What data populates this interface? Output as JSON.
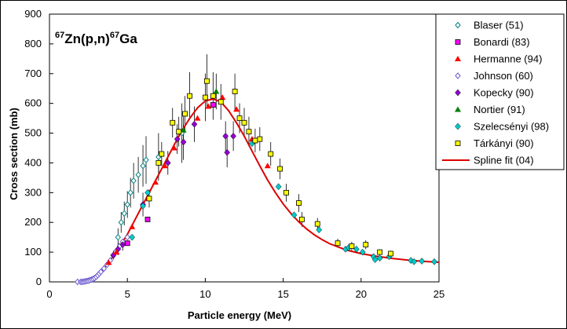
{
  "chart_data": {
    "type": "scatter",
    "title": "",
    "reaction": {
      "mass_a": "67",
      "core_a": "Zn(p,n)",
      "mass_b": "67",
      "core_b": "Ga"
    },
    "xlabel": "Particle energy (MeV)",
    "ylabel": "Cross section (mb)",
    "xlim": [
      0,
      25
    ],
    "ylim": [
      0,
      900
    ],
    "xticks": [
      0,
      5,
      10,
      15,
      20,
      25
    ],
    "yticks": [
      0,
      100,
      200,
      300,
      400,
      500,
      600,
      700,
      800,
      900
    ],
    "grid": false,
    "legend_position": "top-right",
    "series": [
      {
        "name": "Blaser (51)",
        "marker": "diamond-open",
        "color": "#008080",
        "points": [
          {
            "x": 4.4,
            "y": 150,
            "e": 30
          },
          {
            "x": 4.6,
            "y": 200,
            "e": 35
          },
          {
            "x": 4.8,
            "y": 230,
            "e": 40
          },
          {
            "x": 5.0,
            "y": 260,
            "e": 45
          },
          {
            "x": 5.2,
            "y": 300,
            "e": 50
          },
          {
            "x": 5.4,
            "y": 340,
            "e": 60
          },
          {
            "x": 5.7,
            "y": 360,
            "e": 60
          },
          {
            "x": 6.0,
            "y": 390,
            "e": 70
          },
          {
            "x": 6.2,
            "y": 410,
            "e": 80
          },
          {
            "x": 7.0,
            "y": 420,
            "e": 80
          },
          {
            "x": 8.5,
            "y": 500,
            "e": 100
          }
        ]
      },
      {
        "name": "Bonardi (83)",
        "marker": "square",
        "color": "#ff00ff",
        "points": [
          {
            "x": 5.0,
            "y": 130
          },
          {
            "x": 6.3,
            "y": 210
          },
          {
            "x": 10.5,
            "y": 595
          }
        ]
      },
      {
        "name": "Hermanne (94)",
        "marker": "triangle",
        "color": "#ff0000",
        "points": [
          {
            "x": 3.8,
            "y": 65
          },
          {
            "x": 4.3,
            "y": 100
          },
          {
            "x": 5.3,
            "y": 185
          },
          {
            "x": 6.3,
            "y": 280
          },
          {
            "x": 6.8,
            "y": 335
          },
          {
            "x": 7.4,
            "y": 390
          },
          {
            "x": 8.0,
            "y": 450
          },
          {
            "x": 9.5,
            "y": 550
          },
          {
            "x": 10.2,
            "y": 590
          },
          {
            "x": 11.1,
            "y": 620
          },
          {
            "x": 12.0,
            "y": 580
          },
          {
            "x": 13.0,
            "y": 480
          },
          {
            "x": 14.0,
            "y": 390
          }
        ]
      },
      {
        "name": "Johnson (60)",
        "marker": "diamond-open",
        "color": "#6a5acd",
        "points": [
          {
            "x": 1.8,
            "y": 0
          },
          {
            "x": 2.0,
            "y": 0
          },
          {
            "x": 2.1,
            "y": 0
          },
          {
            "x": 2.2,
            "y": 1
          },
          {
            "x": 2.3,
            "y": 2
          },
          {
            "x": 2.4,
            "y": 3
          },
          {
            "x": 2.5,
            "y": 4
          },
          {
            "x": 2.6,
            "y": 6
          },
          {
            "x": 2.7,
            "y": 8
          },
          {
            "x": 2.8,
            "y": 10
          },
          {
            "x": 2.9,
            "y": 13
          },
          {
            "x": 3.0,
            "y": 17
          },
          {
            "x": 3.1,
            "y": 22
          },
          {
            "x": 3.2,
            "y": 28
          },
          {
            "x": 3.3,
            "y": 34
          },
          {
            "x": 3.5,
            "y": 45
          },
          {
            "x": 3.7,
            "y": 58
          },
          {
            "x": 3.9,
            "y": 72
          },
          {
            "x": 4.1,
            "y": 88
          },
          {
            "x": 4.3,
            "y": 105
          },
          {
            "x": 4.5,
            "y": 120
          },
          {
            "x": 4.7,
            "y": 135
          },
          {
            "x": 5.0,
            "y": 150
          }
        ]
      },
      {
        "name": "Kopecky (90)",
        "marker": "diamond",
        "color": "#9400d3",
        "points": [
          {
            "x": 4.1,
            "y": 90,
            "e": 15
          },
          {
            "x": 4.4,
            "y": 110,
            "e": 20
          },
          {
            "x": 4.7,
            "y": 125,
            "e": 20
          },
          {
            "x": 6.0,
            "y": 260,
            "e": 40
          },
          {
            "x": 7.6,
            "y": 400,
            "e": 40
          },
          {
            "x": 8.2,
            "y": 480,
            "e": 50
          },
          {
            "x": 8.6,
            "y": 470,
            "e": 60
          },
          {
            "x": 9.3,
            "y": 530,
            "e": 60
          },
          {
            "x": 11.3,
            "y": 490,
            "e": 50
          },
          {
            "x": 11.4,
            "y": 435,
            "e": 50
          },
          {
            "x": 11.8,
            "y": 490,
            "e": 50
          }
        ]
      },
      {
        "name": "Nortier (91)",
        "marker": "triangle",
        "color": "#008000",
        "points": [
          {
            "x": 8.6,
            "y": 510,
            "e": 50
          },
          {
            "x": 10.7,
            "y": 640,
            "e": 60
          }
        ]
      },
      {
        "name": "Szelecsényi (98)",
        "marker": "diamond",
        "color": "#00cccc",
        "points": [
          {
            "x": 5.3,
            "y": 150
          },
          {
            "x": 6.0,
            "y": 255
          },
          {
            "x": 6.3,
            "y": 300
          },
          {
            "x": 13.0,
            "y": 465
          },
          {
            "x": 14.7,
            "y": 320
          },
          {
            "x": 15.7,
            "y": 225
          },
          {
            "x": 17.3,
            "y": 175
          },
          {
            "x": 19.0,
            "y": 110
          },
          {
            "x": 19.2,
            "y": 115
          },
          {
            "x": 19.7,
            "y": 110
          },
          {
            "x": 20.1,
            "y": 100
          },
          {
            "x": 20.8,
            "y": 85
          },
          {
            "x": 20.9,
            "y": 75
          },
          {
            "x": 21.2,
            "y": 80
          },
          {
            "x": 21.8,
            "y": 85
          },
          {
            "x": 23.2,
            "y": 72
          },
          {
            "x": 23.4,
            "y": 68
          },
          {
            "x": 23.9,
            "y": 70
          },
          {
            "x": 24.7,
            "y": 68
          }
        ]
      },
      {
        "name": "Tárkányi (90)",
        "marker": "square",
        "color": "#ffff00",
        "points": [
          {
            "x": 6.4,
            "y": 280,
            "e": 30
          },
          {
            "x": 7.0,
            "y": 400,
            "e": 40
          },
          {
            "x": 7.2,
            "y": 430,
            "e": 40
          },
          {
            "x": 7.9,
            "y": 535,
            "e": 50
          },
          {
            "x": 8.3,
            "y": 505,
            "e": 50
          },
          {
            "x": 8.7,
            "y": 565,
            "e": 60
          },
          {
            "x": 9.0,
            "y": 625,
            "e": 80
          },
          {
            "x": 10.0,
            "y": 620,
            "e": 80
          },
          {
            "x": 10.1,
            "y": 675,
            "e": 90
          },
          {
            "x": 10.5,
            "y": 625,
            "e": 80
          },
          {
            "x": 11.0,
            "y": 605,
            "e": 60
          },
          {
            "x": 11.9,
            "y": 640,
            "e": 60
          },
          {
            "x": 12.2,
            "y": 550,
            "e": 50
          },
          {
            "x": 12.5,
            "y": 535,
            "e": 50
          },
          {
            "x": 12.8,
            "y": 505,
            "e": 50
          },
          {
            "x": 13.2,
            "y": 475,
            "e": 40
          },
          {
            "x": 13.5,
            "y": 480,
            "e": 40
          },
          {
            "x": 14.2,
            "y": 430,
            "e": 40
          },
          {
            "x": 14.8,
            "y": 380,
            "e": 35
          },
          {
            "x": 15.2,
            "y": 300,
            "e": 30
          },
          {
            "x": 16.0,
            "y": 265,
            "e": 30
          },
          {
            "x": 16.2,
            "y": 210,
            "e": 25
          },
          {
            "x": 17.2,
            "y": 195,
            "e": 20
          },
          {
            "x": 18.5,
            "y": 130,
            "e": 15
          },
          {
            "x": 19.4,
            "y": 120,
            "e": 15
          },
          {
            "x": 20.3,
            "y": 125,
            "e": 15
          },
          {
            "x": 21.2,
            "y": 100,
            "e": 10
          },
          {
            "x": 21.9,
            "y": 95,
            "e": 10
          }
        ]
      },
      {
        "name": "Spline fit (04)",
        "marker": "line",
        "color": "#dd0000",
        "x": [
          2.0,
          2.5,
          3.0,
          3.5,
          4.0,
          4.5,
          5.0,
          5.5,
          6.0,
          6.5,
          7.0,
          7.5,
          8.0,
          8.5,
          9.0,
          9.5,
          10.0,
          10.5,
          11.0,
          11.5,
          12.0,
          12.5,
          13.0,
          13.5,
          14.0,
          14.5,
          15.0,
          15.5,
          16.0,
          16.5,
          17.0,
          17.5,
          18.0,
          19.0,
          20.0,
          21.0,
          22.0,
          23.0,
          24.0,
          25.0
        ],
        "y": [
          0,
          5,
          18,
          45,
          80,
          118,
          160,
          210,
          260,
          310,
          360,
          410,
          460,
          508,
          550,
          585,
          608,
          615,
          605,
          575,
          535,
          490,
          440,
          390,
          342,
          300,
          262,
          230,
          202,
          178,
          158,
          142,
          128,
          108,
          95,
          86,
          79,
          73,
          69,
          66
        ]
      }
    ]
  }
}
